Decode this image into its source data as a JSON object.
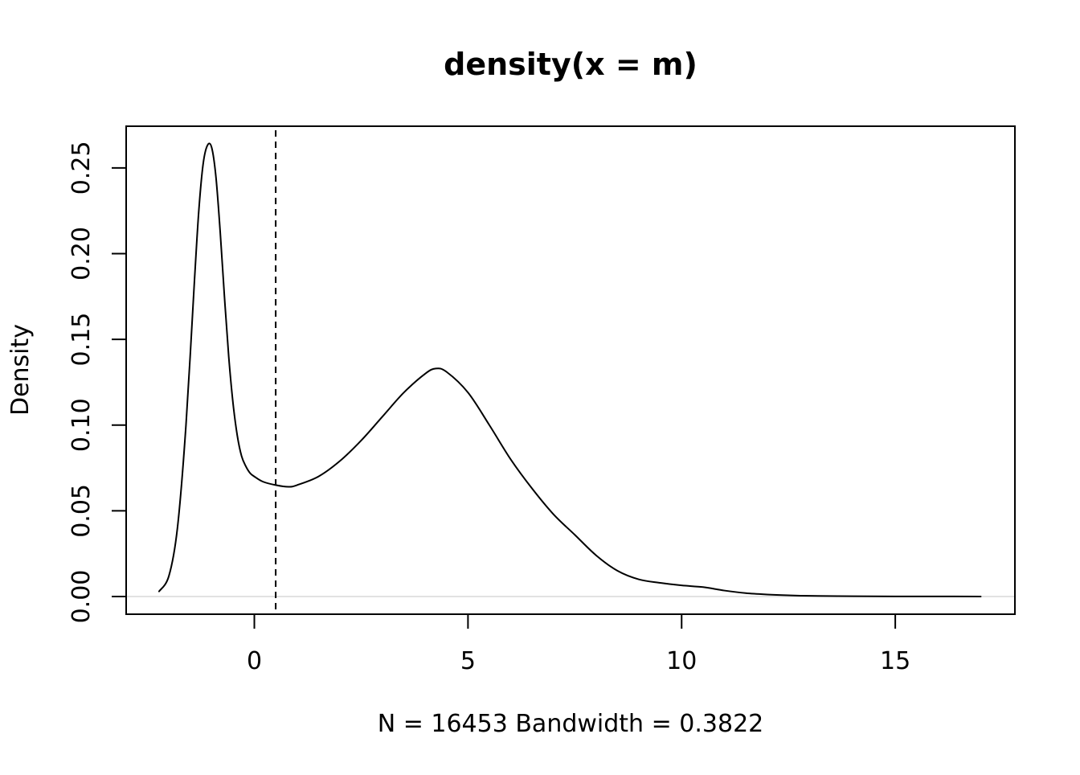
{
  "chart_data": {
    "type": "line",
    "title": "density(x = m)",
    "xlabel": "N = 16453   Bandwidth = 0.3822",
    "ylabel": "Density",
    "xlim": [
      -3.0,
      17.8
    ],
    "ylim": [
      -0.0103,
      0.2743
    ],
    "x_ticks": [
      0,
      5,
      10,
      15
    ],
    "x_tick_labels": [
      "0",
      "5",
      "10",
      "15"
    ],
    "y_ticks": [
      0.0,
      0.05,
      0.1,
      0.15,
      0.2,
      0.25
    ],
    "y_tick_labels": [
      "0.00",
      "0.05",
      "0.10",
      "0.15",
      "0.20",
      "0.25"
    ],
    "grid": false,
    "legend": "none",
    "reference_line": {
      "orientation": "vertical",
      "x": 0.5,
      "style": "dashed",
      "color": "#000000"
    },
    "baseline": {
      "orientation": "horizontal",
      "y": 0,
      "color": "#d9d9d9"
    },
    "series": [
      {
        "color": "#000000",
        "x": [
          -2.23,
          -2.0,
          -1.8,
          -1.6,
          -1.4,
          -1.3,
          -1.2,
          -1.1,
          -1.0,
          -0.9,
          -0.8,
          -0.7,
          -0.6,
          -0.5,
          -0.4,
          -0.3,
          -0.2,
          -0.1,
          0.0,
          0.2,
          0.5,
          0.8,
          1.0,
          1.5,
          2.0,
          2.5,
          3.0,
          3.5,
          4.0,
          4.25,
          4.5,
          5.0,
          5.5,
          6.0,
          6.5,
          7.0,
          7.5,
          8.0,
          8.5,
          9.0,
          9.5,
          10.0,
          10.5,
          11.0,
          11.5,
          12.0,
          12.5,
          13.0,
          14.0,
          15.0,
          16.0,
          17.0
        ],
        "y": [
          0.003,
          0.012,
          0.04,
          0.1,
          0.185,
          0.225,
          0.252,
          0.263,
          0.262,
          0.245,
          0.213,
          0.175,
          0.14,
          0.113,
          0.094,
          0.082,
          0.076,
          0.072,
          0.07,
          0.067,
          0.065,
          0.064,
          0.065,
          0.07,
          0.079,
          0.091,
          0.105,
          0.119,
          0.13,
          0.133,
          0.131,
          0.119,
          0.1,
          0.08,
          0.063,
          0.048,
          0.036,
          0.024,
          0.015,
          0.01,
          0.008,
          0.0065,
          0.0055,
          0.0035,
          0.002,
          0.0012,
          0.0007,
          0.0004,
          0.0002,
          0.0001,
          0.0001,
          0.0
        ]
      }
    ]
  }
}
